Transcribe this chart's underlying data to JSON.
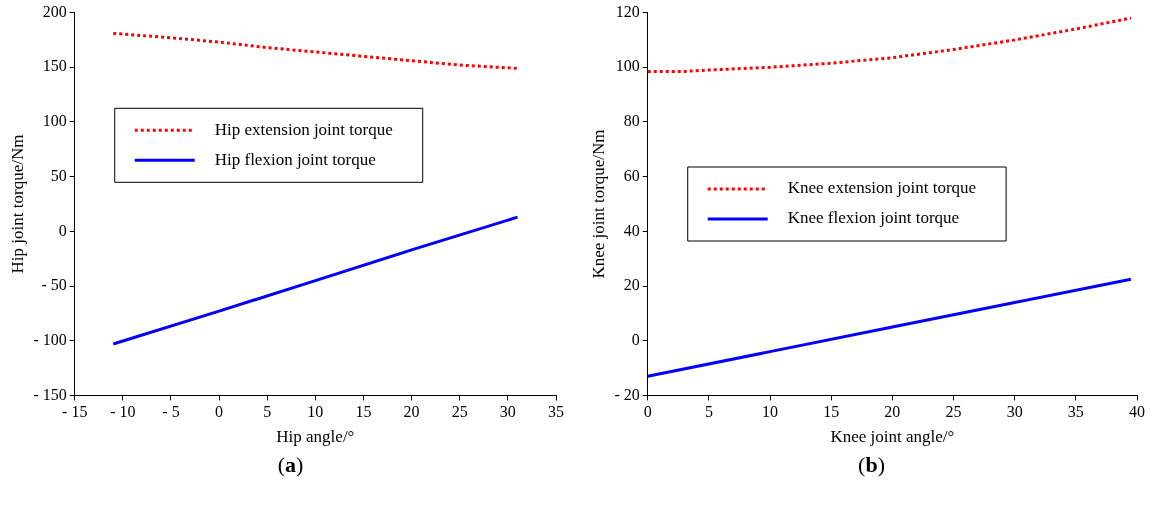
{
  "chart_data": [
    {
      "type": "line",
      "xlabel": "Hip angle/°",
      "ylabel": "Hip joint torque/Nm",
      "annotations": [
        "(a)"
      ],
      "legend": "top left",
      "grid": false,
      "marker": "none",
      "xlim": [
        -15,
        35
      ],
      "xticks": [
        {
          "value": -15,
          "label": "- 15"
        },
        {
          "value": -10,
          "label": "- 10"
        },
        {
          "value": -5,
          "label": "- 5"
        },
        0,
        5,
        10,
        15,
        20,
        25,
        30,
        35
      ],
      "ylim": [
        -150,
        200
      ],
      "yticks": [
        {
          "value": -150,
          "label": "- 150"
        },
        {
          "value": -100,
          "label": "- 100"
        },
        {
          "value": -50,
          "label": "- 50"
        },
        0,
        50,
        100,
        150,
        200
      ],
      "series": [
        {
          "name": "Hip extension joint torque",
          "color": "#ff0000",
          "line_style": "dotted",
          "x": [
            -11,
            -5,
            0,
            5,
            10,
            15,
            20,
            25,
            31
          ],
          "values": [
            181,
            177,
            173,
            168,
            164,
            160,
            156,
            152,
            149
          ]
        },
        {
          "name": "Hip flexion joint torque",
          "color": "#0000ff",
          "line_style": "solid",
          "x": [
            -11,
            0,
            10,
            20,
            31
          ],
          "values": [
            -103,
            -73,
            -45,
            -17,
            13
          ]
        }
      ]
    },
    {
      "type": "line",
      "xlabel": "Knee joint angle/°",
      "ylabel": "Knee joint torque/Nm",
      "annotations": [
        "(b)"
      ],
      "legend": "left",
      "grid": false,
      "marker": "none",
      "xlim": [
        0,
        40
      ],
      "xticks": [
        0,
        5,
        10,
        15,
        20,
        25,
        30,
        35,
        40
      ],
      "ylim": [
        -20,
        120
      ],
      "yticks": [
        {
          "value": -20,
          "label": "- 20"
        },
        0,
        20,
        40,
        60,
        80,
        100,
        120
      ],
      "series": [
        {
          "name": "Knee extension joint torque",
          "color": "#ff0000",
          "line_style": "dotted",
          "x": [
            0,
            3,
            5,
            10,
            15,
            20,
            25,
            30,
            35,
            39.5
          ],
          "values": [
            98.5,
            98.5,
            99,
            100,
            101.5,
            103.5,
            106.5,
            110,
            114,
            118
          ]
        },
        {
          "name": "Knee flexion joint torque",
          "color": "#0000ff",
          "line_style": "solid",
          "x": [
            0,
            10,
            20,
            30,
            39.5
          ],
          "values": [
            -13,
            -4,
            5,
            14,
            22.5
          ]
        }
      ]
    }
  ]
}
